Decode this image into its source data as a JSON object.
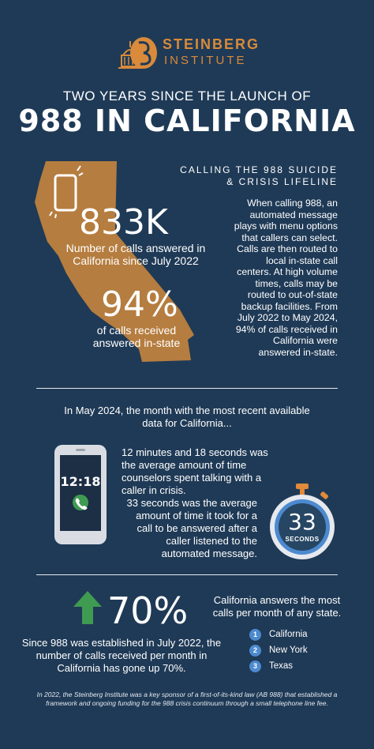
{
  "header": {
    "brand_line1": "STEINBERG",
    "brand_line2": "INSTITUTE",
    "subtitle": "TWO YEARS SINCE THE LAUNCH OF",
    "title": "988 IN CALIFORNIA"
  },
  "california": {
    "calls_answered_value": "833K",
    "calls_answered_caption": "Number of calls answered in California since July 2022",
    "in_state_value": "94%",
    "in_state_caption": "of calls received answered in-state"
  },
  "lifeline": {
    "title": "CALLING THE 988 SUICIDE & CRISIS LIFELINE",
    "body": "When calling 988, an automated message plays with menu options that callers can select. Calls are then routed to local in-state call centers. At high volume times, calls may be routed to out-of-state backup facilities. From July 2022 to May 2024, 94% of calls received in California were answered in-state."
  },
  "may2024": {
    "title": "In May 2024, the month with the most recent available data for California...",
    "phone_time": "12:18",
    "talk_time_text": "12 minutes and 18 seconds was the average amount of time counselors spent talking with a caller in crisis.",
    "answer_time_text": "33 seconds was the average amount of time it took for a call to be answered after a caller listened to the automated message.",
    "stopwatch_value": "33",
    "stopwatch_unit": "SECONDS"
  },
  "growth": {
    "value": "70%",
    "text": "Since 988 was established in July 2022, the number of calls received per month in California has gone up 70%."
  },
  "ranking": {
    "text": "California answers the most calls per month of any state.",
    "items": [
      {
        "rank": "1",
        "state": "California"
      },
      {
        "rank": "2",
        "state": "New York"
      },
      {
        "rank": "3",
        "state": "Texas"
      }
    ]
  },
  "footer": {
    "text": "In 2022, the Steinberg Institute was a key sponsor of a first-of-its-kind law (AB 988) that established a framework and ongoing funding for the 988 crisis continuum through a small telephone line fee."
  },
  "colors": {
    "background": "#1f3a56",
    "accent_orange": "#d98a3a",
    "map_fill": "#b57d3f",
    "arrow_green": "#3f9a52",
    "badge_blue": "#4c8ad0"
  }
}
